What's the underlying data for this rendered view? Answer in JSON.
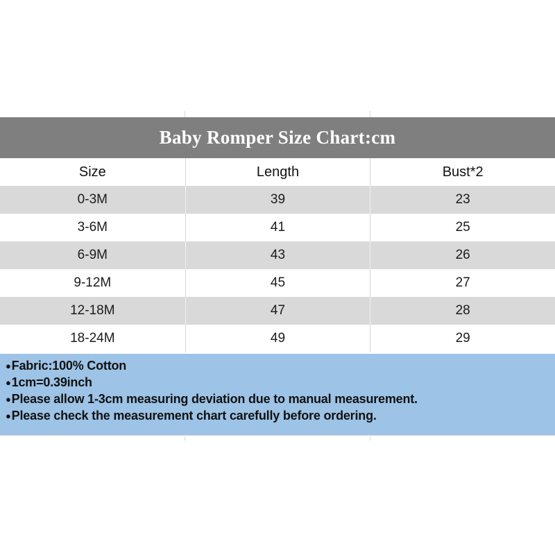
{
  "banner": {
    "title": "Baby Romper Size Chart:cm",
    "bg": "#7f7f7f",
    "text_color": "#ffffff"
  },
  "table": {
    "headers": [
      "Size",
      "Length",
      "Bust*2"
    ],
    "rows": [
      {
        "size": "0-3M",
        "length": "39",
        "bust": "23"
      },
      {
        "size": "3-6M",
        "length": "41",
        "bust": "25"
      },
      {
        "size": "6-9M",
        "length": "43",
        "bust": "26"
      },
      {
        "size": "9-12M",
        "length": "45",
        "bust": "27"
      },
      {
        "size": "12-18M",
        "length": "47",
        "bust": "28"
      },
      {
        "size": "18-24M",
        "length": "49",
        "bust": "29"
      }
    ],
    "alt_row_bg": "#d9d9d9"
  },
  "notes": {
    "bg": "#9dc3e6",
    "bullet": "●",
    "items": [
      "Fabric:100% Cotton",
      "1cm=0.39inch",
      "Please allow 1-3cm measuring deviation due to manual measurement.",
      "Please check the measurement chart carefully before ordering."
    ]
  },
  "chart_data": {
    "type": "table",
    "title": "Baby Romper Size Chart:cm",
    "units": "cm",
    "columns": [
      "Size",
      "Length",
      "Bust*2"
    ],
    "rows": [
      [
        "0-3M",
        39,
        23
      ],
      [
        "3-6M",
        41,
        25
      ],
      [
        "6-9M",
        43,
        26
      ],
      [
        "9-12M",
        45,
        27
      ],
      [
        "12-18M",
        47,
        28
      ],
      [
        "18-24M",
        49,
        29
      ]
    ],
    "notes": [
      "Fabric:100% Cotton",
      "1cm=0.39inch",
      "Please allow 1-3cm measuring deviation due to manual measurement.",
      "Please check the measurement chart carefully before ordering."
    ]
  }
}
